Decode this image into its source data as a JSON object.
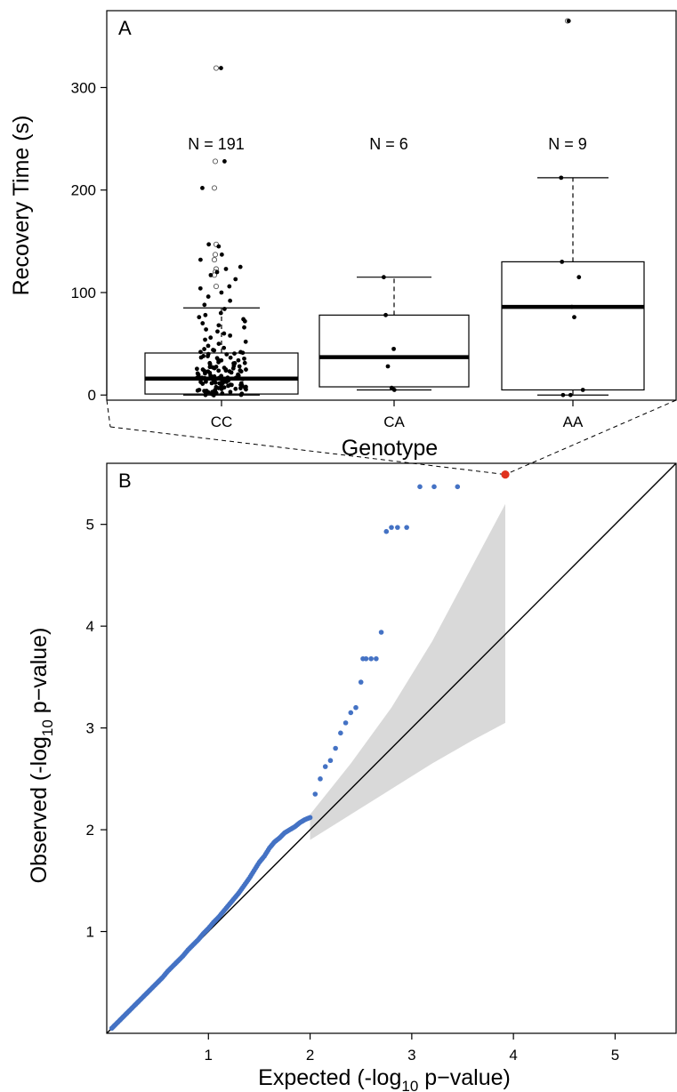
{
  "chart_data": [
    {
      "type": "box",
      "panel_label": "A",
      "xlabel": "Genotype",
      "ylabel": "Recovery Time (s)",
      "ylim": [
        -5,
        375
      ],
      "yticks": [
        0,
        100,
        200,
        300
      ],
      "categories": [
        "CC",
        "CA",
        "AA"
      ],
      "n_labels": [
        "N = 191",
        "N = 6",
        "N = 9"
      ],
      "boxes": [
        {
          "category": "CC",
          "whisker_low": 0,
          "q1": 1,
          "median": 16,
          "q3": 41,
          "whisker_high": 85
        },
        {
          "category": "CA",
          "whisker_low": 5,
          "q1": 8,
          "median": 37,
          "q3": 78,
          "whisker_high": 115
        },
        {
          "category": "AA",
          "whisker_low": 0,
          "q1": 5,
          "median": 86,
          "q3": 130,
          "whisker_high": 212
        }
      ],
      "outliers": [
        {
          "category": "CC",
          "values": [
            319,
            228,
            202,
            147,
            137,
            132,
            123,
            120,
            117,
            106
          ]
        },
        {
          "category": "AA",
          "values": [
            365
          ]
        }
      ],
      "points": [
        {
          "category": "CC",
          "values": [
            319,
            228,
            202,
            147,
            145,
            137,
            132,
            125,
            123,
            120,
            117,
            113,
            106,
            104,
            100,
            96,
            92,
            88,
            84,
            80,
            78,
            76,
            74,
            72,
            70,
            68,
            66,
            64,
            62,
            60,
            58,
            56,
            54,
            52,
            50,
            48,
            46,
            44,
            42,
            40,
            38,
            36,
            34,
            32,
            30,
            28,
            27,
            26,
            25,
            24,
            23,
            22,
            21,
            20,
            19,
            18,
            17,
            16,
            15,
            14,
            13,
            12,
            11,
            10,
            9,
            8,
            7,
            6,
            5,
            4,
            3,
            2,
            1,
            0
          ]
        },
        {
          "category": "CA",
          "values": [
            115,
            78,
            45,
            28,
            7,
            5
          ]
        },
        {
          "category": "AA",
          "values": [
            365,
            212,
            130,
            115,
            86,
            76,
            5,
            0,
            0
          ]
        }
      ],
      "colors": {
        "points": "#000000",
        "outlier_open": "#ffffff"
      }
    },
    {
      "type": "scatter",
      "panel_label": "B",
      "xlabel_main": "Expected (-log",
      "xlabel_sub": "10",
      "xlabel_tail": "  p−value)",
      "ylabel_main": "Observed (-log",
      "ylabel_sub": "10",
      "ylabel_tail": "  p−value)",
      "xlim": [
        0,
        5.6
      ],
      "ylim": [
        0,
        5.6
      ],
      "xticks": [
        1,
        2,
        3,
        4,
        5
      ],
      "yticks": [
        1,
        2,
        3,
        4,
        5
      ],
      "reference_line": "y = x",
      "confidence_band": {
        "x": [
          2.0,
          2.4,
          2.8,
          3.2,
          3.6,
          3.92
        ],
        "lower": [
          1.9,
          2.15,
          2.4,
          2.65,
          2.88,
          3.05
        ],
        "upper": [
          2.15,
          2.65,
          3.2,
          3.85,
          4.6,
          5.2
        ]
      },
      "series": [
        {
          "values_x": [
            0.05,
            0.1,
            0.15,
            0.2,
            0.25,
            0.3,
            0.35,
            0.4,
            0.45,
            0.5,
            0.55,
            0.6,
            0.65,
            0.7,
            0.75,
            0.8,
            0.85,
            0.9,
            0.95,
            1.0,
            1.05,
            1.1,
            1.15,
            1.2,
            1.25,
            1.3,
            1.35,
            1.4,
            1.45,
            1.5,
            1.55,
            1.6,
            1.65,
            1.7,
            1.75,
            1.8,
            1.85,
            1.9,
            1.95,
            2.0,
            2.05,
            2.1,
            2.15,
            2.2,
            2.25,
            2.3,
            2.35,
            2.4,
            2.45,
            2.5,
            2.52,
            2.55,
            2.6,
            2.65,
            2.7,
            2.75,
            2.8,
            2.86,
            2.95,
            3.08,
            3.22,
            3.45
          ],
          "values_y": [
            0.05,
            0.1,
            0.15,
            0.2,
            0.25,
            0.3,
            0.35,
            0.4,
            0.45,
            0.5,
            0.55,
            0.61,
            0.66,
            0.71,
            0.76,
            0.82,
            0.87,
            0.92,
            0.98,
            1.03,
            1.09,
            1.14,
            1.2,
            1.26,
            1.32,
            1.38,
            1.45,
            1.52,
            1.6,
            1.68,
            1.74,
            1.82,
            1.88,
            1.92,
            1.97,
            2.0,
            2.03,
            2.07,
            2.1,
            2.12,
            2.35,
            2.5,
            2.62,
            2.68,
            2.8,
            2.95,
            3.05,
            3.15,
            3.2,
            3.45,
            3.68,
            3.68,
            3.68,
            3.68,
            3.94,
            4.93,
            4.97,
            4.97,
            4.97,
            5.37,
            5.37,
            5.37
          ]
        }
      ],
      "highlight_point": {
        "x": 3.92,
        "y": 5.49
      },
      "colors": {
        "points": "#4472c4",
        "highlight": "#e0321e",
        "band": "#d9d9d9",
        "line": "#000000"
      }
    }
  ]
}
